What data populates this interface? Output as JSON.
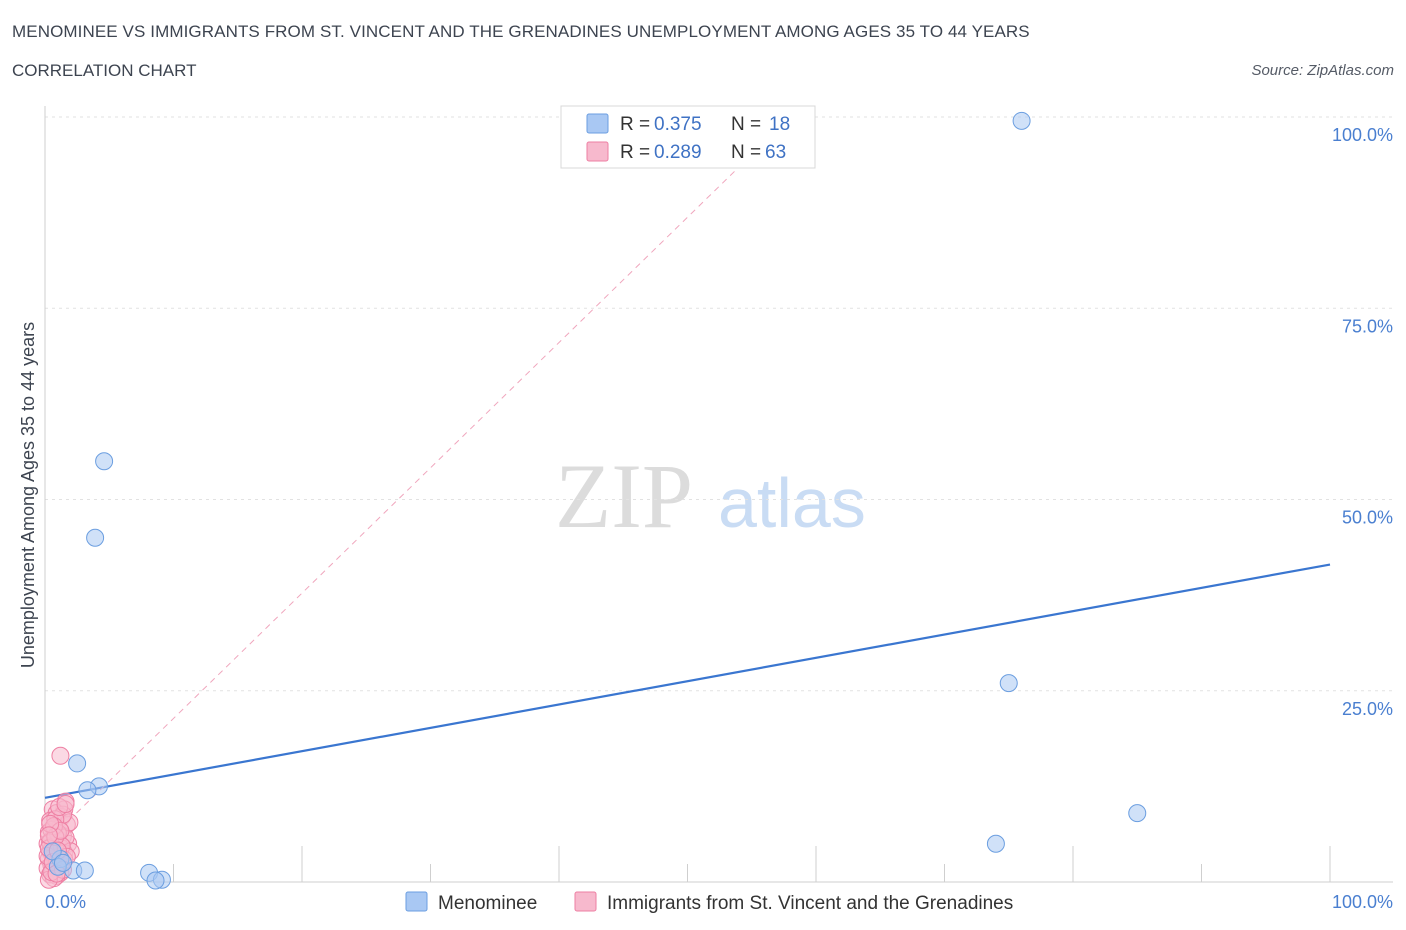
{
  "header": {
    "title": "MENOMINEE VS IMMIGRANTS FROM ST. VINCENT AND THE GRENADINES UNEMPLOYMENT AMONG AGES 35 TO 44 YEARS",
    "subtitle": "CORRELATION CHART",
    "source": "Source: ZipAtlas.com"
  },
  "watermark": {
    "zip": "ZIP",
    "atlas": "atlas"
  },
  "chart_data": {
    "type": "scatter",
    "xlabel": "",
    "ylabel": "Unemployment Among Ages 35 to 44 years",
    "xlim": [
      0,
      100
    ],
    "ylim": [
      0,
      100
    ],
    "x_tick_labels": {
      "min": "0.0%",
      "max": "100.0%"
    },
    "y_ticks": [
      {
        "value": 25,
        "label": "25.0%"
      },
      {
        "value": 50,
        "label": "50.0%"
      },
      {
        "value": 75,
        "label": "75.0%"
      },
      {
        "value": 100,
        "label": "100.0%"
      }
    ],
    "legend_box": [
      {
        "r_label": "R = ",
        "r_value": "0.375",
        "n_label": "N = ",
        "n_value": "18",
        "color": "#a9c8f3"
      },
      {
        "r_label": "R = ",
        "r_value": "0.289",
        "n_label": "N = ",
        "n_value": "63",
        "color": "#f7b9cd"
      }
    ],
    "series": [
      {
        "name": "Menominee",
        "color": "#a9c8f3",
        "stroke": "#6b9ee0",
        "trend": {
          "x0": 0,
          "y0": 11,
          "x1": 100,
          "y1": 41.5,
          "color": "#3a76d0",
          "style": "solid"
        },
        "points": [
          {
            "x": 76,
            "y": 99.5
          },
          {
            "x": 4.6,
            "y": 55
          },
          {
            "x": 3.9,
            "y": 45
          },
          {
            "x": 75,
            "y": 26
          },
          {
            "x": 2.5,
            "y": 15.5
          },
          {
            "x": 4.2,
            "y": 12.5
          },
          {
            "x": 3.3,
            "y": 12
          },
          {
            "x": 85,
            "y": 9
          },
          {
            "x": 74,
            "y": 5
          },
          {
            "x": 1.2,
            "y": 3
          },
          {
            "x": 2.2,
            "y": 1.5
          },
          {
            "x": 3.1,
            "y": 1.5
          },
          {
            "x": 8.1,
            "y": 1.2
          },
          {
            "x": 9.1,
            "y": 0.3
          },
          {
            "x": 8.6,
            "y": 0.2
          },
          {
            "x": 1.0,
            "y": 2.0
          },
          {
            "x": 0.6,
            "y": 4.0
          },
          {
            "x": 1.4,
            "y": 2.5
          }
        ]
      },
      {
        "name": "Immigrants from St. Vincent and the Grenadines",
        "color": "#f7b9cd",
        "stroke": "#ee7fa3",
        "trend": {
          "x0": 0,
          "y0": 5,
          "x1": 58,
          "y1": 100,
          "color": "#f0a6bd",
          "style": "dashed"
        },
        "points": [
          {
            "x": 1.2,
            "y": 16.5
          },
          {
            "x": 1.6,
            "y": 10.5
          },
          {
            "x": 1.5,
            "y": 9.5
          },
          {
            "x": 0.6,
            "y": 9.5
          },
          {
            "x": 0.9,
            "y": 9.0
          },
          {
            "x": 1.3,
            "y": 8.5
          },
          {
            "x": 0.4,
            "y": 8.0
          },
          {
            "x": 1.7,
            "y": 7.5
          },
          {
            "x": 0.7,
            "y": 7.0
          },
          {
            "x": 1.1,
            "y": 7.0
          },
          {
            "x": 0.3,
            "y": 6.5
          },
          {
            "x": 1.4,
            "y": 6.0
          },
          {
            "x": 0.8,
            "y": 6.0
          },
          {
            "x": 0.5,
            "y": 5.5
          },
          {
            "x": 1.0,
            "y": 5.5
          },
          {
            "x": 1.8,
            "y": 5.0
          },
          {
            "x": 0.2,
            "y": 5.0
          },
          {
            "x": 0.6,
            "y": 4.8
          },
          {
            "x": 1.2,
            "y": 4.5
          },
          {
            "x": 0.9,
            "y": 4.2
          },
          {
            "x": 0.4,
            "y": 4.0
          },
          {
            "x": 1.5,
            "y": 3.8
          },
          {
            "x": 0.7,
            "y": 3.5
          },
          {
            "x": 1.1,
            "y": 3.2
          },
          {
            "x": 0.3,
            "y": 3.0
          },
          {
            "x": 0.8,
            "y": 2.8
          },
          {
            "x": 1.3,
            "y": 2.5
          },
          {
            "x": 0.5,
            "y": 2.2
          },
          {
            "x": 1.0,
            "y": 2.0
          },
          {
            "x": 0.2,
            "y": 1.8
          },
          {
            "x": 0.6,
            "y": 1.5
          },
          {
            "x": 1.2,
            "y": 1.2
          },
          {
            "x": 0.4,
            "y": 1.0
          },
          {
            "x": 0.9,
            "y": 0.8
          },
          {
            "x": 0.7,
            "y": 0.5
          },
          {
            "x": 0.3,
            "y": 0.3
          },
          {
            "x": 1.6,
            "y": 5.8
          },
          {
            "x": 1.9,
            "y": 7.8
          },
          {
            "x": 2.0,
            "y": 4.0
          },
          {
            "x": 0.5,
            "y": 6.8
          },
          {
            "x": 1.4,
            "y": 8.8
          },
          {
            "x": 0.8,
            "y": 8.2
          },
          {
            "x": 0.6,
            "y": 3.8
          },
          {
            "x": 1.0,
            "y": 6.4
          },
          {
            "x": 0.4,
            "y": 5.2
          },
          {
            "x": 1.3,
            "y": 4.7
          },
          {
            "x": 0.9,
            "y": 2.4
          },
          {
            "x": 0.2,
            "y": 3.4
          },
          {
            "x": 1.5,
            "y": 2.9
          },
          {
            "x": 0.7,
            "y": 7.3
          },
          {
            "x": 1.1,
            "y": 9.8
          },
          {
            "x": 0.3,
            "y": 4.4
          },
          {
            "x": 1.7,
            "y": 3.3
          },
          {
            "x": 0.5,
            "y": 1.3
          },
          {
            "x": 0.8,
            "y": 5.9
          },
          {
            "x": 1.2,
            "y": 6.7
          },
          {
            "x": 0.6,
            "y": 2.6
          },
          {
            "x": 1.4,
            "y": 1.6
          },
          {
            "x": 0.4,
            "y": 7.6
          },
          {
            "x": 1.0,
            "y": 4.1
          },
          {
            "x": 0.9,
            "y": 1.1
          },
          {
            "x": 1.6,
            "y": 10.2
          },
          {
            "x": 0.3,
            "y": 6.1
          }
        ]
      }
    ]
  }
}
